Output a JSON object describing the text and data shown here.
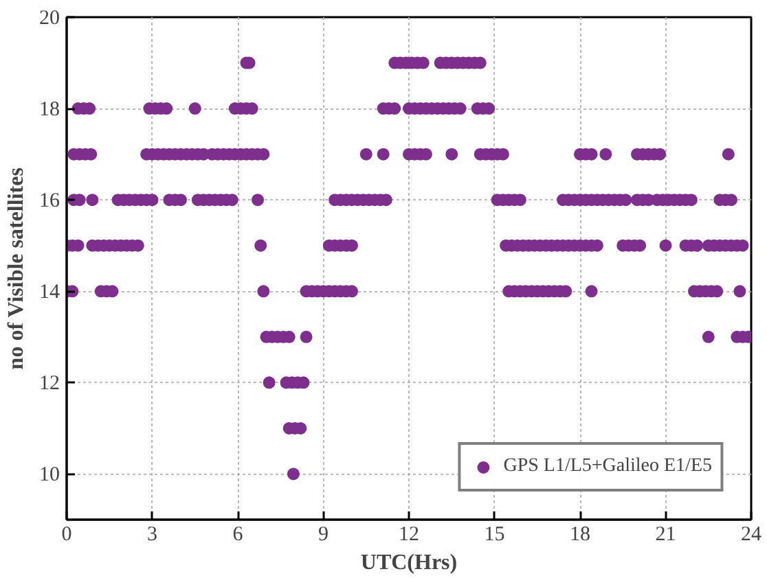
{
  "chart_data": {
    "type": "scatter",
    "xlabel": "UTC(Hrs)",
    "ylabel": "no of Visible satellites",
    "xlim": [
      0,
      24
    ],
    "ylim": [
      9,
      20
    ],
    "xticks": [
      0,
      3,
      6,
      9,
      12,
      15,
      18,
      21,
      24
    ],
    "yticks": [
      10,
      12,
      14,
      16,
      18,
      20
    ],
    "grid": true,
    "legend": "bottom right",
    "marker": "circle",
    "series": [
      {
        "name": "GPS L1/L5+Galileo E1/E5",
        "color": "#7e2f8e",
        "x": [
          0,
          0.2,
          1.2,
          1.4,
          1.6,
          6.9,
          8.4,
          8.6,
          8.8,
          9.0,
          9.2,
          9.4,
          9.6,
          9.8,
          10.0,
          15.5,
          15.7,
          15.9,
          16.1,
          16.3,
          16.5,
          16.7,
          16.9,
          17.1,
          17.3,
          17.5,
          18.4,
          22.0,
          22.2,
          22.4,
          22.6,
          22.8,
          23.6,
          7.0,
          7.2,
          7.4,
          7.6,
          7.8,
          8.4,
          22.5,
          23.5,
          23.7,
          23.9,
          7.1,
          7.7,
          7.9,
          8.1,
          8.3,
          7.8,
          8.0,
          8.2,
          7.95,
          0,
          0.2,
          0.4,
          0.9,
          1.1,
          1.3,
          1.5,
          1.7,
          1.9,
          2.1,
          2.3,
          2.5,
          6.8,
          9.2,
          9.4,
          9.6,
          9.8,
          10.0,
          15.4,
          15.6,
          15.8,
          16.0,
          16.2,
          16.4,
          16.6,
          16.8,
          17.0,
          17.2,
          17.4,
          17.6,
          17.8,
          18.0,
          18.2,
          18.4,
          18.6,
          19.5,
          19.7,
          19.9,
          20.1,
          21.0,
          21.7,
          21.9,
          22.1,
          22.5,
          22.7,
          22.9,
          23.1,
          23.3,
          23.5,
          23.7,
          0.25,
          0.45,
          0.9,
          1.8,
          2.0,
          2.2,
          2.4,
          2.6,
          2.8,
          3.0,
          3.6,
          3.8,
          4.0,
          4.6,
          4.8,
          5.0,
          5.2,
          5.4,
          5.6,
          5.8,
          6.7,
          9.4,
          9.6,
          9.8,
          10.0,
          10.2,
          10.4,
          10.6,
          10.8,
          11.0,
          11.2,
          15.1,
          15.3,
          15.5,
          15.7,
          15.9,
          17.4,
          17.6,
          17.8,
          18.0,
          18.2,
          18.4,
          18.6,
          18.8,
          19.0,
          19.2,
          19.4,
          19.6,
          20.0,
          20.2,
          20.4,
          20.7,
          20.9,
          21.1,
          21.3,
          21.5,
          21.7,
          21.9,
          22.9,
          23.1,
          23.3,
          0.25,
          0.45,
          0.65,
          0.85,
          2.8,
          3.0,
          3.2,
          3.4,
          3.6,
          3.8,
          4.0,
          4.2,
          4.4,
          4.6,
          4.8,
          5.1,
          5.3,
          5.5,
          5.7,
          5.9,
          6.1,
          6.3,
          6.5,
          6.7,
          6.9,
          10.5,
          11.1,
          12.0,
          12.2,
          12.4,
          12.6,
          13.5,
          14.5,
          14.7,
          14.9,
          15.1,
          15.3,
          18.0,
          18.2,
          18.4,
          18.9,
          20.0,
          20.2,
          20.4,
          20.6,
          20.8,
          23.2,
          0.4,
          0.6,
          0.8,
          2.9,
          3.1,
          3.3,
          3.5,
          4.5,
          5.9,
          6.1,
          6.3,
          6.5,
          11.1,
          11.3,
          11.5,
          12.0,
          12.2,
          12.4,
          12.6,
          12.8,
          13.0,
          13.2,
          13.4,
          13.6,
          13.8,
          14.4,
          14.6,
          14.8,
          6.3,
          6.4,
          11.5,
          11.7,
          11.9,
          12.1,
          12.3,
          12.5,
          13.1,
          13.3,
          13.5,
          13.7,
          13.9,
          14.1,
          14.3,
          14.5
        ],
        "values": [
          14,
          14,
          14,
          14,
          14,
          14,
          14,
          14,
          14,
          14,
          14,
          14,
          14,
          14,
          14,
          14,
          14,
          14,
          14,
          14,
          14,
          14,
          14,
          14,
          14,
          14,
          14,
          14,
          14,
          14,
          14,
          14,
          14,
          13,
          13,
          13,
          13,
          13,
          13,
          13,
          13,
          13,
          13,
          12,
          12,
          12,
          12,
          12,
          11,
          11,
          11,
          10,
          15,
          15,
          15,
          15,
          15,
          15,
          15,
          15,
          15,
          15,
          15,
          15,
          15,
          15,
          15,
          15,
          15,
          15,
          15,
          15,
          15,
          15,
          15,
          15,
          15,
          15,
          15,
          15,
          15,
          15,
          15,
          15,
          15,
          15,
          15,
          15,
          15,
          15,
          15,
          15,
          15,
          15,
          15,
          15,
          15,
          15,
          15,
          15,
          15,
          15,
          16,
          16,
          16,
          16,
          16,
          16,
          16,
          16,
          16,
          16,
          16,
          16,
          16,
          16,
          16,
          16,
          16,
          16,
          16,
          16,
          16,
          16,
          16,
          16,
          16,
          16,
          16,
          16,
          16,
          16,
          16,
          16,
          16,
          16,
          16,
          16,
          16,
          16,
          16,
          16,
          16,
          16,
          16,
          16,
          16,
          16,
          16,
          16,
          16,
          16,
          16,
          16,
          16,
          16,
          16,
          16,
          16,
          16,
          16,
          16,
          16,
          17,
          17,
          17,
          17,
          17,
          17,
          17,
          17,
          17,
          17,
          17,
          17,
          17,
          17,
          17,
          17,
          17,
          17,
          17,
          17,
          17,
          17,
          17,
          17,
          17,
          17,
          17,
          17,
          17,
          17,
          17,
          17,
          17,
          17,
          17,
          17,
          17,
          17,
          17,
          17,
          17,
          17,
          17,
          17,
          17,
          17,
          17,
          18,
          18,
          18,
          18,
          18,
          18,
          18,
          18,
          18,
          18,
          18,
          18,
          18,
          18,
          18,
          18,
          18,
          18,
          18,
          18,
          18,
          18,
          18,
          18,
          18,
          18,
          18,
          18,
          19,
          19,
          19,
          19,
          19,
          19,
          19,
          19,
          19,
          19,
          19,
          19,
          19,
          19,
          19,
          19
        ]
      }
    ]
  }
}
